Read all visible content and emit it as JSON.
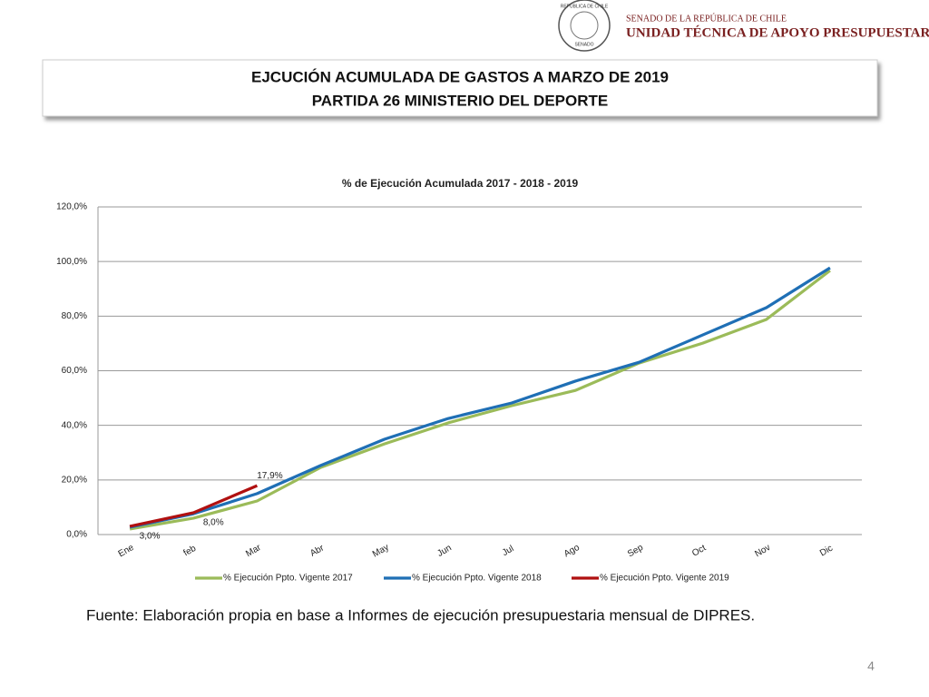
{
  "header": {
    "seal_top": "REPÚBLICA DE CHILE",
    "seal_bottom": "SENADO",
    "institution": "SENADO DE LA REPÚBLICA DE CHILE",
    "unit": "UNIDAD TÉCNICA DE APOYO PRESUPUESTARIO"
  },
  "slide_title": [
    "EJCUCIÓN ACUMULADA DE GASTOS A MARZO DE 2019",
    "PARTIDA 26 MINISTERIO DEL DEPORTE"
  ],
  "chart_data": {
    "type": "line",
    "title": "% de Ejecución Acumulada 2017 - 2018 - 2019",
    "categories": [
      "Ene",
      "feb",
      "Mar",
      "Abr",
      "May",
      "Jun",
      "Jul",
      "Ago",
      "Sep",
      "Oct",
      "Nov",
      "Dic"
    ],
    "series": [
      {
        "name": "% Ejecución Ppto. Vigente 2017",
        "color": "#9bbb59",
        "values": [
          2.0,
          6.0,
          12.3,
          24.6,
          33.2,
          40.9,
          47.2,
          52.8,
          62.8,
          70.1,
          78.8,
          96.7
        ]
      },
      {
        "name": "% Ejecución Ppto. Vigente 2018",
        "color": "#1f6fb5",
        "values": [
          2.7,
          7.6,
          15.0,
          25.3,
          34.9,
          42.5,
          48.2,
          56.2,
          63.1,
          73.1,
          83.1,
          97.7
        ]
      },
      {
        "name": "% Ejecución Ppto. Vigente 2019",
        "color": "#b01010",
        "values": [
          3.0,
          8.0,
          17.9,
          null,
          null,
          null,
          null,
          null,
          null,
          null,
          null,
          null
        ],
        "value_labels": [
          "3,0%",
          "8,0%",
          "17,9%",
          null,
          null,
          null,
          null,
          null,
          null,
          null,
          null,
          null
        ]
      }
    ],
    "ylim": [
      0,
      120
    ],
    "yticks": [
      {
        "value": 0,
        "label": "0,0%"
      },
      {
        "value": 20,
        "label": "20,0%"
      },
      {
        "value": 40,
        "label": "40,0%"
      },
      {
        "value": 60,
        "label": "60,0%"
      },
      {
        "value": 80,
        "label": "80,0%"
      },
      {
        "value": 100,
        "label": "100,0%"
      },
      {
        "value": 120,
        "label": "120,0%"
      }
    ],
    "grid": true,
    "legend": "bottom"
  },
  "source": "Fuente: Elaboración propia en base  a Informes de ejecución presupuestaria mensual de DIPRES.",
  "page_number": "4"
}
